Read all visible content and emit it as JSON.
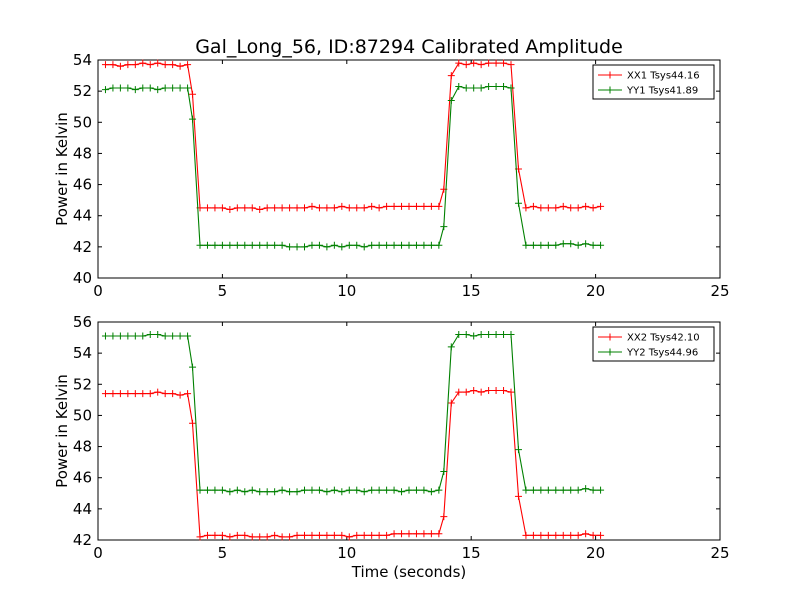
{
  "chart_data": [
    {
      "type": "line",
      "title": "Gal_Long_56, ID:87294 Calibrated Amplitude",
      "xlabel": "",
      "ylabel": "Power in Kelvin",
      "xlim": [
        0,
        25
      ],
      "ylim": [
        40,
        54
      ],
      "xticks": [
        0,
        5,
        10,
        15,
        20,
        25
      ],
      "yticks": [
        40,
        42,
        44,
        46,
        48,
        50,
        52,
        54
      ],
      "grid": false,
      "legend_position": "top-right",
      "x": [
        0.3,
        0.6,
        0.9,
        1.2,
        1.5,
        1.8,
        2.1,
        2.4,
        2.7,
        3.0,
        3.3,
        3.6,
        3.8,
        4.1,
        4.4,
        4.7,
        5.0,
        5.3,
        5.6,
        5.9,
        6.2,
        6.5,
        6.8,
        7.1,
        7.4,
        7.7,
        8.0,
        8.3,
        8.6,
        8.9,
        9.2,
        9.5,
        9.8,
        10.1,
        10.4,
        10.7,
        11.0,
        11.3,
        11.6,
        11.9,
        12.2,
        12.5,
        12.8,
        13.1,
        13.4,
        13.7,
        13.9,
        14.2,
        14.5,
        14.8,
        15.1,
        15.4,
        15.7,
        16.0,
        16.3,
        16.6,
        16.9,
        17.2,
        17.5,
        17.8,
        18.1,
        18.4,
        18.7,
        19.0,
        19.3,
        19.6,
        19.9,
        20.2
      ],
      "series": [
        {
          "name": "XX1 Tsys44.16",
          "color": "#ff0000",
          "values": [
            53.7,
            53.7,
            53.6,
            53.7,
            53.7,
            53.8,
            53.7,
            53.8,
            53.7,
            53.7,
            53.6,
            53.7,
            51.8,
            44.5,
            44.5,
            44.5,
            44.5,
            44.4,
            44.5,
            44.5,
            44.5,
            44.4,
            44.5,
            44.5,
            44.5,
            44.5,
            44.5,
            44.5,
            44.6,
            44.5,
            44.5,
            44.5,
            44.6,
            44.5,
            44.5,
            44.5,
            44.6,
            44.5,
            44.6,
            44.6,
            44.6,
            44.6,
            44.6,
            44.6,
            44.6,
            44.6,
            45.7,
            53.0,
            53.8,
            53.7,
            53.8,
            53.7,
            53.8,
            53.8,
            53.8,
            53.7,
            47.0,
            44.5,
            44.6,
            44.5,
            44.5,
            44.5,
            44.6,
            44.5,
            44.5,
            44.6,
            44.5,
            44.6
          ]
        },
        {
          "name": "YY1 Tsys41.89",
          "color": "#008000",
          "values": [
            52.1,
            52.2,
            52.2,
            52.2,
            52.1,
            52.2,
            52.2,
            52.1,
            52.2,
            52.2,
            52.2,
            52.2,
            50.2,
            42.1,
            42.1,
            42.1,
            42.1,
            42.1,
            42.1,
            42.1,
            42.1,
            42.1,
            42.1,
            42.1,
            42.1,
            42.0,
            42.0,
            42.0,
            42.1,
            42.1,
            42.0,
            42.1,
            42.0,
            42.1,
            42.1,
            42.0,
            42.1,
            42.1,
            42.1,
            42.1,
            42.1,
            42.1,
            42.1,
            42.1,
            42.1,
            42.1,
            43.3,
            51.4,
            52.3,
            52.2,
            52.2,
            52.2,
            52.3,
            52.3,
            52.3,
            52.2,
            44.8,
            42.1,
            42.1,
            42.1,
            42.1,
            42.1,
            42.2,
            42.2,
            42.1,
            42.2,
            42.1,
            42.1
          ]
        }
      ]
    },
    {
      "type": "line",
      "title": "",
      "xlabel": "Time (seconds)",
      "ylabel": "Power in Kelvin",
      "xlim": [
        0,
        25
      ],
      "ylim": [
        42,
        56
      ],
      "xticks": [
        0,
        5,
        10,
        15,
        20,
        25
      ],
      "yticks": [
        42,
        44,
        46,
        48,
        50,
        52,
        54,
        56
      ],
      "grid": false,
      "legend_position": "top-right",
      "x": [
        0.3,
        0.6,
        0.9,
        1.2,
        1.5,
        1.8,
        2.1,
        2.4,
        2.7,
        3.0,
        3.3,
        3.6,
        3.8,
        4.1,
        4.4,
        4.7,
        5.0,
        5.3,
        5.6,
        5.9,
        6.2,
        6.5,
        6.8,
        7.1,
        7.4,
        7.7,
        8.0,
        8.3,
        8.6,
        8.9,
        9.2,
        9.5,
        9.8,
        10.1,
        10.4,
        10.7,
        11.0,
        11.3,
        11.6,
        11.9,
        12.2,
        12.5,
        12.8,
        13.1,
        13.4,
        13.7,
        13.9,
        14.2,
        14.5,
        14.8,
        15.1,
        15.4,
        15.7,
        16.0,
        16.3,
        16.6,
        16.9,
        17.2,
        17.5,
        17.8,
        18.1,
        18.4,
        18.7,
        19.0,
        19.3,
        19.6,
        19.9,
        20.2
      ],
      "series": [
        {
          "name": "XX2 Tsys42.10",
          "color": "#ff0000",
          "values": [
            51.4,
            51.4,
            51.4,
            51.4,
            51.4,
            51.4,
            51.4,
            51.5,
            51.4,
            51.4,
            51.3,
            51.4,
            49.5,
            42.2,
            42.3,
            42.3,
            42.3,
            42.2,
            42.3,
            42.3,
            42.2,
            42.2,
            42.2,
            42.3,
            42.2,
            42.2,
            42.3,
            42.3,
            42.3,
            42.3,
            42.3,
            42.3,
            42.3,
            42.2,
            42.3,
            42.3,
            42.3,
            42.3,
            42.3,
            42.4,
            42.4,
            42.4,
            42.4,
            42.4,
            42.4,
            42.4,
            43.5,
            50.8,
            51.5,
            51.5,
            51.6,
            51.5,
            51.6,
            51.6,
            51.6,
            51.5,
            44.8,
            42.3,
            42.3,
            42.3,
            42.3,
            42.3,
            42.3,
            42.3,
            42.3,
            42.4,
            42.3,
            42.3
          ]
        },
        {
          "name": "YY2 Tsys44.96",
          "color": "#008000",
          "values": [
            55.1,
            55.1,
            55.1,
            55.1,
            55.1,
            55.1,
            55.2,
            55.2,
            55.1,
            55.1,
            55.1,
            55.1,
            53.1,
            45.2,
            45.2,
            45.2,
            45.2,
            45.1,
            45.2,
            45.1,
            45.2,
            45.1,
            45.1,
            45.1,
            45.2,
            45.1,
            45.1,
            45.2,
            45.2,
            45.2,
            45.1,
            45.2,
            45.1,
            45.2,
            45.2,
            45.1,
            45.2,
            45.2,
            45.2,
            45.2,
            45.1,
            45.2,
            45.2,
            45.2,
            45.1,
            45.2,
            46.4,
            54.4,
            55.2,
            55.2,
            55.1,
            55.2,
            55.2,
            55.2,
            55.2,
            55.2,
            47.8,
            45.2,
            45.2,
            45.2,
            45.2,
            45.2,
            45.2,
            45.2,
            45.2,
            45.3,
            45.2,
            45.2
          ]
        }
      ]
    }
  ]
}
